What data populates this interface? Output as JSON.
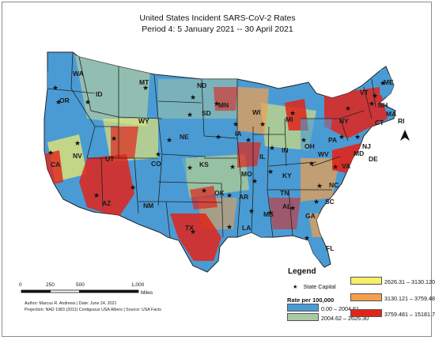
{
  "title": {
    "line1": "United States Incident SARS-CoV-2 Rates",
    "line2": "Period 4: 5 January 2021  --  30 April 2021"
  },
  "legend": {
    "title": "Legend",
    "capital_label": "State Capital",
    "rate_title": "Rate per 100,000",
    "classes": [
      {
        "label": "0.00 – 2004.61",
        "color": "#4a9bd4"
      },
      {
        "label": "2004.62 – 2626.30",
        "color": "#a9c9a4"
      },
      {
        "label": "2626.31  –  3130.120",
        "color": "#f7ef68"
      },
      {
        "label": "3130.121  –  3759.48",
        "color": "#f4a04a"
      },
      {
        "label": "3759.481 – 15181.75",
        "color": "#e2231a"
      }
    ]
  },
  "scale_bar": {
    "ticks": [
      "0",
      "250",
      "500",
      "1,000"
    ],
    "unit": "Miles"
  },
  "credits": {
    "line1": "Author: Marcus R. Andrews | Date: June 24, 2021",
    "line2": "Projection: NAD 1983 (2011) Contiguous USA Albers  | Source: USA Facts"
  },
  "states": [
    "WA",
    "OR",
    "ID",
    "MT",
    "ND",
    "ME",
    "VT",
    "NH",
    "MA",
    "RI",
    "WY",
    "SD",
    "MN",
    "WI",
    "MI",
    "NY",
    "CT",
    "NJ",
    "PA",
    "OH",
    "IN",
    "IA",
    "NE",
    "NV",
    "UT",
    "CA",
    "CO",
    "KS",
    "MO",
    "IL",
    "KY",
    "WV",
    "VA",
    "DE",
    "MD",
    "NC",
    "TN",
    "OK",
    "AR",
    "AZ",
    "NM",
    "TX",
    "LA",
    "MS",
    "AL",
    "GA",
    "SC",
    "FL"
  ]
}
